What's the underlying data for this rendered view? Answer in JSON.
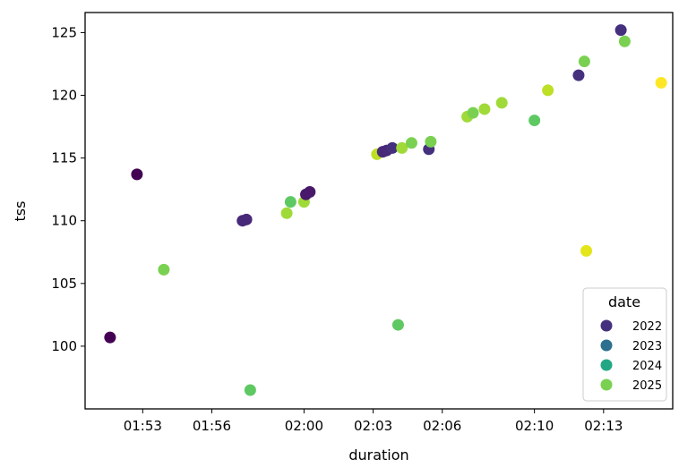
{
  "chart_data": {
    "type": "scatter",
    "xlabel": "duration",
    "ylabel": "tss",
    "x_unit": "minutes (h:mm)",
    "xlim": [
      "01:50:30",
      "02:16:00"
    ],
    "ylim": [
      95.0,
      126.6
    ],
    "x_ticks": [
      "01:53",
      "01:56",
      "02:00",
      "02:03",
      "02:06",
      "02:10",
      "02:13"
    ],
    "y_ticks": [
      100,
      105,
      110,
      115,
      120,
      125
    ],
    "grid": false,
    "legend": {
      "title": "date",
      "position": "bottom-right",
      "entries": [
        {
          "label": "2022",
          "color": "#45307e"
        },
        {
          "label": "2023",
          "color": "#2c6f8e"
        },
        {
          "label": "2024",
          "color": "#22a785"
        },
        {
          "label": "2025",
          "color": "#7ad151"
        }
      ]
    },
    "points": [
      {
        "x": "01:51:35",
        "y": 100.7,
        "color": "#440154"
      },
      {
        "x": "01:52:45",
        "y": 113.7,
        "color": "#440154"
      },
      {
        "x": "01:53:55",
        "y": 106.1,
        "color": "#7ad151"
      },
      {
        "x": "01:57:20",
        "y": 110.0,
        "color": "#482878"
      },
      {
        "x": "01:57:30",
        "y": 110.1,
        "color": "#482878"
      },
      {
        "x": "01:57:40",
        "y": 96.5,
        "color": "#5ec962"
      },
      {
        "x": "01:59:15",
        "y": 110.6,
        "color": "#a0da39"
      },
      {
        "x": "01:59:25",
        "y": 111.5,
        "color": "#5ec962"
      },
      {
        "x": "02:00:00",
        "y": 111.5,
        "color": "#a0da39"
      },
      {
        "x": "02:00:05",
        "y": 112.1,
        "color": "#48186a"
      },
      {
        "x": "02:00:15",
        "y": 112.3,
        "color": "#48186a"
      },
      {
        "x": "02:03:10",
        "y": 115.3,
        "color": "#bddf26"
      },
      {
        "x": "02:03:25",
        "y": 115.5,
        "color": "#482878"
      },
      {
        "x": "02:03:35",
        "y": 115.6,
        "color": "#482878"
      },
      {
        "x": "02:03:50",
        "y": 115.8,
        "color": "#45307e"
      },
      {
        "x": "02:04:05",
        "y": 101.7,
        "color": "#5ec962"
      },
      {
        "x": "02:04:15",
        "y": 115.8,
        "color": "#a0da39"
      },
      {
        "x": "02:04:40",
        "y": 116.2,
        "color": "#7ad151"
      },
      {
        "x": "02:05:25",
        "y": 115.7,
        "color": "#45307e"
      },
      {
        "x": "02:05:30",
        "y": 116.3,
        "color": "#7ad151"
      },
      {
        "x": "02:07:05",
        "y": 118.3,
        "color": "#a0da39"
      },
      {
        "x": "02:07:20",
        "y": 118.6,
        "color": "#7ad151"
      },
      {
        "x": "02:07:50",
        "y": 118.9,
        "color": "#a0da39"
      },
      {
        "x": "02:08:35",
        "y": 119.4,
        "color": "#a0da39"
      },
      {
        "x": "02:10:00",
        "y": 118.0,
        "color": "#5ec962"
      },
      {
        "x": "02:10:35",
        "y": 120.4,
        "color": "#bddf26"
      },
      {
        "x": "02:11:55",
        "y": 121.6,
        "color": "#45307e"
      },
      {
        "x": "02:12:10",
        "y": 122.7,
        "color": "#7ad151"
      },
      {
        "x": "02:12:15",
        "y": 107.6,
        "color": "#e4e51a"
      },
      {
        "x": "02:13:45",
        "y": 125.2,
        "color": "#45307e"
      },
      {
        "x": "02:13:55",
        "y": 124.3,
        "color": "#7ad151"
      },
      {
        "x": "02:15:30",
        "y": 121.0,
        "color": "#fde725"
      }
    ]
  }
}
